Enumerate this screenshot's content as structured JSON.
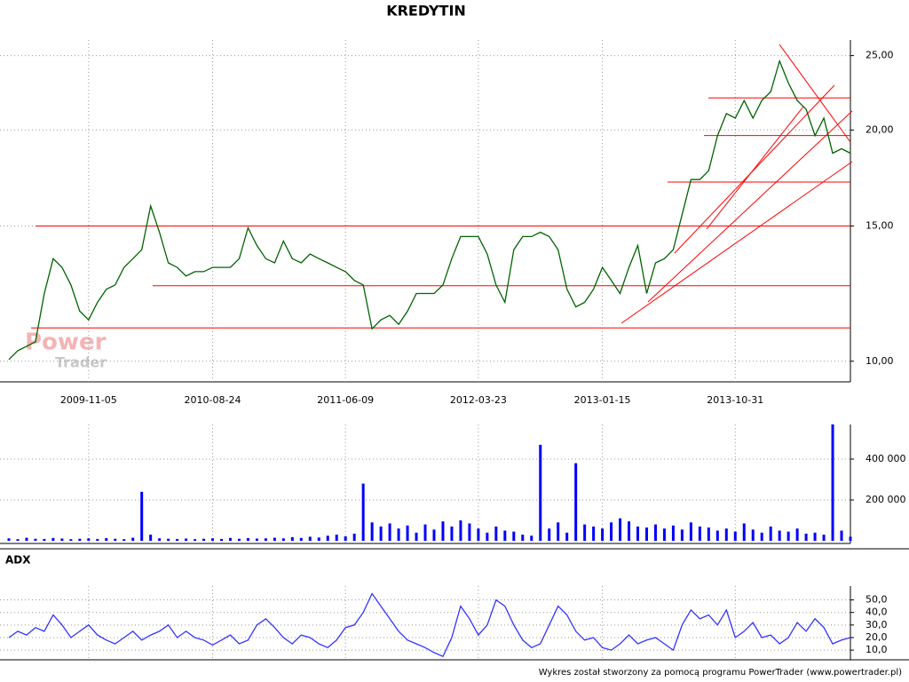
{
  "chart_data": [
    {
      "type": "line",
      "title": "KREDYTIN",
      "log_scale": true,
      "grid": true,
      "color": "#006400",
      "categories": [
        null,
        null,
        null,
        null,
        null,
        null,
        null,
        null,
        null,
        "2009-11-05",
        null,
        null,
        null,
        null,
        null,
        null,
        null,
        null,
        null,
        null,
        null,
        null,
        null,
        "2010-08-24",
        null,
        null,
        null,
        null,
        null,
        null,
        null,
        null,
        null,
        null,
        null,
        null,
        null,
        null,
        "2011-06-09",
        null,
        null,
        null,
        null,
        null,
        null,
        null,
        null,
        null,
        null,
        null,
        null,
        null,
        null,
        "2012-03-23",
        null,
        null,
        null,
        null,
        null,
        null,
        null,
        null,
        null,
        null,
        null,
        null,
        null,
        "2013-01-15",
        null,
        null,
        null,
        null,
        null,
        null,
        null,
        null,
        null,
        null,
        null,
        null,
        null,
        null,
        "2013-10-31",
        null,
        null,
        null,
        null,
        null,
        null,
        null,
        null,
        null,
        null,
        null,
        null,
        null
      ],
      "values": [
        10.05,
        10.32,
        10.46,
        10.6,
        12.25,
        13.6,
        13.25,
        12.57,
        11.62,
        11.32,
        11.93,
        12.41,
        12.57,
        13.25,
        13.6,
        13.97,
        15.93,
        14.72,
        13.43,
        13.25,
        12.91,
        13.08,
        13.08,
        13.25,
        13.25,
        13.25,
        13.6,
        14.92,
        14.15,
        13.6,
        13.43,
        14.34,
        13.6,
        13.43,
        13.79,
        13.6,
        13.43,
        13.25,
        13.08,
        12.74,
        12.57,
        11.02,
        11.32,
        11.47,
        11.17,
        11.62,
        12.25,
        12.25,
        12.25,
        12.57,
        13.6,
        14.53,
        14.53,
        14.53,
        13.79,
        12.57,
        11.93,
        13.97,
        14.53,
        14.53,
        14.72,
        14.53,
        13.97,
        12.41,
        11.77,
        11.93,
        12.41,
        13.25,
        12.74,
        12.25,
        13.25,
        14.15,
        12.25,
        13.43,
        13.6,
        13.97,
        15.52,
        17.24,
        17.24,
        17.7,
        19.67,
        21.01,
        20.73,
        21.85,
        20.73,
        21.85,
        22.43,
        24.6,
        23.03,
        21.85,
        21.28,
        19.67,
        20.73,
        18.66,
        18.91,
        18.66
      ],
      "ylim": [
        9.4,
        26.2
      ],
      "yticks": [
        {
          "value": 10,
          "label": "10,00"
        },
        {
          "value": 15,
          "label": "15,00"
        },
        {
          "value": 20,
          "label": "20,00"
        },
        {
          "value": 25,
          "label": "25,00"
        }
      ],
      "levels": [
        15.0,
        12.54,
        11.05,
        22.02,
        19.67,
        17.11
      ],
      "levels_color": "#ff0000"
    },
    {
      "type": "bar",
      "grid": true,
      "color": "#0000ff",
      "values": [
        12000,
        8000,
        15000,
        10000,
        9000,
        14000,
        11000,
        8000,
        10000,
        12000,
        9000,
        13000,
        10000,
        8000,
        15000,
        240000,
        30000,
        12000,
        10000,
        9000,
        11000,
        8000,
        10000,
        12000,
        9000,
        14000,
        10000,
        13000,
        11000,
        12000,
        15000,
        12000,
        18000,
        14000,
        20000,
        16000,
        25000,
        30000,
        22000,
        35000,
        280000,
        90000,
        70000,
        85000,
        60000,
        75000,
        40000,
        80000,
        55000,
        95000,
        70000,
        100000,
        85000,
        60000,
        40000,
        70000,
        50000,
        45000,
        30000,
        25000,
        470000,
        60000,
        90000,
        40000,
        380000,
        80000,
        70000,
        60000,
        90000,
        110000,
        95000,
        70000,
        65000,
        80000,
        60000,
        75000,
        55000,
        90000,
        70000,
        65000,
        50000,
        60000,
        45000,
        85000,
        55000,
        40000,
        70000,
        50000,
        45000,
        60000,
        35000,
        40000,
        30000,
        570000,
        50000,
        20000
      ],
      "ylim": [
        0,
        600000
      ],
      "yticks": [
        {
          "value": 200000,
          "label": "200 000"
        },
        {
          "value": 400000,
          "label": "400 000"
        }
      ]
    },
    {
      "type": "line",
      "title": "ADX",
      "grid": true,
      "color": "#3333ff",
      "values": [
        20,
        25,
        22,
        28,
        25,
        38,
        30,
        20,
        25,
        30,
        22,
        18,
        15,
        20,
        25,
        18,
        22,
        25,
        30,
        20,
        25,
        20,
        18,
        14,
        18,
        22,
        15,
        18,
        30,
        35,
        28,
        20,
        15,
        22,
        20,
        15,
        12,
        18,
        28,
        30,
        40,
        55,
        45,
        35,
        25,
        18,
        15,
        12,
        8,
        5,
        20,
        45,
        35,
        22,
        30,
        50,
        45,
        30,
        18,
        12,
        15,
        30,
        45,
        38,
        25,
        18,
        20,
        12,
        10,
        15,
        22,
        15,
        18,
        20,
        15,
        10,
        30,
        42,
        35,
        38,
        30,
        42,
        20,
        25,
        32,
        20,
        22,
        15,
        20,
        32,
        25,
        35,
        28,
        15,
        18,
        20
      ],
      "ylim": [
        3,
        61
      ],
      "yticks": [
        {
          "value": 10,
          "label": "10,0"
        },
        {
          "value": 20,
          "label": "20,0"
        },
        {
          "value": 30,
          "label": "30,0"
        },
        {
          "value": 40,
          "label": "40,0"
        },
        {
          "value": 50,
          "label": "50,0"
        }
      ]
    }
  ],
  "watermark": [
    "Power",
    "Trader"
  ],
  "footer": "Wykres został stworzony za pomocą programu PowerTrader (www.powertrader.pl)"
}
